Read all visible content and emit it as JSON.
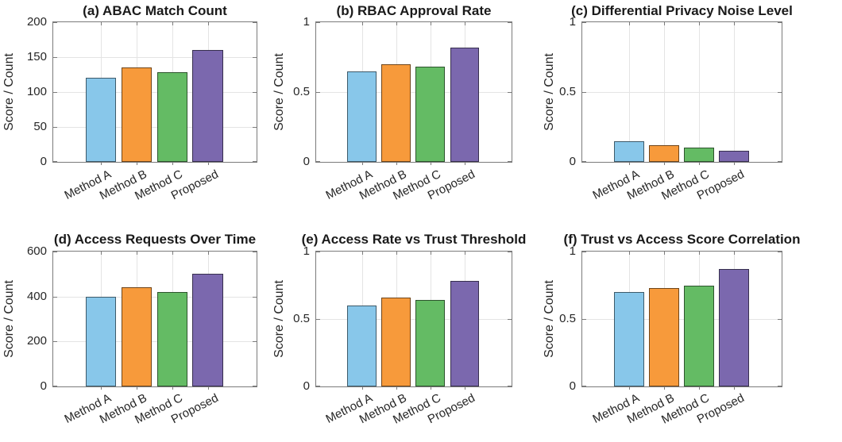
{
  "figure": {
    "background": "#ffffff",
    "text_color": "#262626",
    "axis_color": "#7b7b7b",
    "grid_color": "#e4e4e4",
    "bar_colors": [
      "#88C7EA",
      "#F79A3B",
      "#64BB64",
      "#7B68AE"
    ],
    "categories": [
      "Method A",
      "Method B",
      "Method C",
      "Proposed"
    ]
  },
  "chart_data": [
    {
      "type": "bar",
      "panel": "a",
      "title": "(a) ABAC Match Count",
      "ylabel": "Score / Count",
      "xlabel": "",
      "categories": [
        "Method A",
        "Method B",
        "Method C",
        "Proposed"
      ],
      "values": [
        120,
        135,
        128,
        160
      ],
      "ylim": [
        0,
        200
      ],
      "yticks": [
        0,
        50,
        100,
        150,
        200
      ],
      "grid": true,
      "legend": null
    },
    {
      "type": "bar",
      "panel": "b",
      "title": "(b) RBAC Approval Rate",
      "ylabel": "Score / Count",
      "xlabel": "",
      "categories": [
        "Method A",
        "Method B",
        "Method C",
        "Proposed"
      ],
      "values": [
        0.65,
        0.7,
        0.68,
        0.82
      ],
      "ylim": [
        0,
        1
      ],
      "yticks": [
        0,
        0.5,
        1
      ],
      "grid": true,
      "legend": null
    },
    {
      "type": "bar",
      "panel": "c",
      "title": "(c) Differential Privacy Noise Level",
      "ylabel": "Score / Count",
      "xlabel": "",
      "categories": [
        "Method A",
        "Method B",
        "Method C",
        "Proposed"
      ],
      "values": [
        0.15,
        0.12,
        0.1,
        0.08
      ],
      "ylim": [
        0,
        1
      ],
      "yticks": [
        0,
        0.5,
        1
      ],
      "grid": true,
      "legend": null
    },
    {
      "type": "bar",
      "panel": "d",
      "title": "(d) Access Requests Over Time",
      "ylabel": "Score / Count",
      "xlabel": "",
      "categories": [
        "Method A",
        "Method B",
        "Method C",
        "Proposed"
      ],
      "values": [
        400,
        440,
        420,
        500
      ],
      "ylim": [
        0,
        600
      ],
      "yticks": [
        0,
        200,
        400,
        600
      ],
      "grid": true,
      "legend": null
    },
    {
      "type": "bar",
      "panel": "e",
      "title": "(e) Access Rate vs Trust Threshold",
      "ylabel": "Score / Count",
      "xlabel": "",
      "categories": [
        "Method A",
        "Method B",
        "Method C",
        "Proposed"
      ],
      "values": [
        0.6,
        0.66,
        0.64,
        0.78
      ],
      "ylim": [
        0,
        1
      ],
      "yticks": [
        0,
        0.5,
        1
      ],
      "grid": true,
      "legend": null
    },
    {
      "type": "bar",
      "panel": "f",
      "title": "(f) Trust vs Access Score Correlation",
      "ylabel": "Score / Count",
      "xlabel": "",
      "categories": [
        "Method A",
        "Method B",
        "Method C",
        "Proposed"
      ],
      "values": [
        0.7,
        0.73,
        0.75,
        0.87
      ],
      "ylim": [
        0,
        1
      ],
      "yticks": [
        0,
        0.5,
        1
      ],
      "grid": true,
      "legend": null
    }
  ]
}
